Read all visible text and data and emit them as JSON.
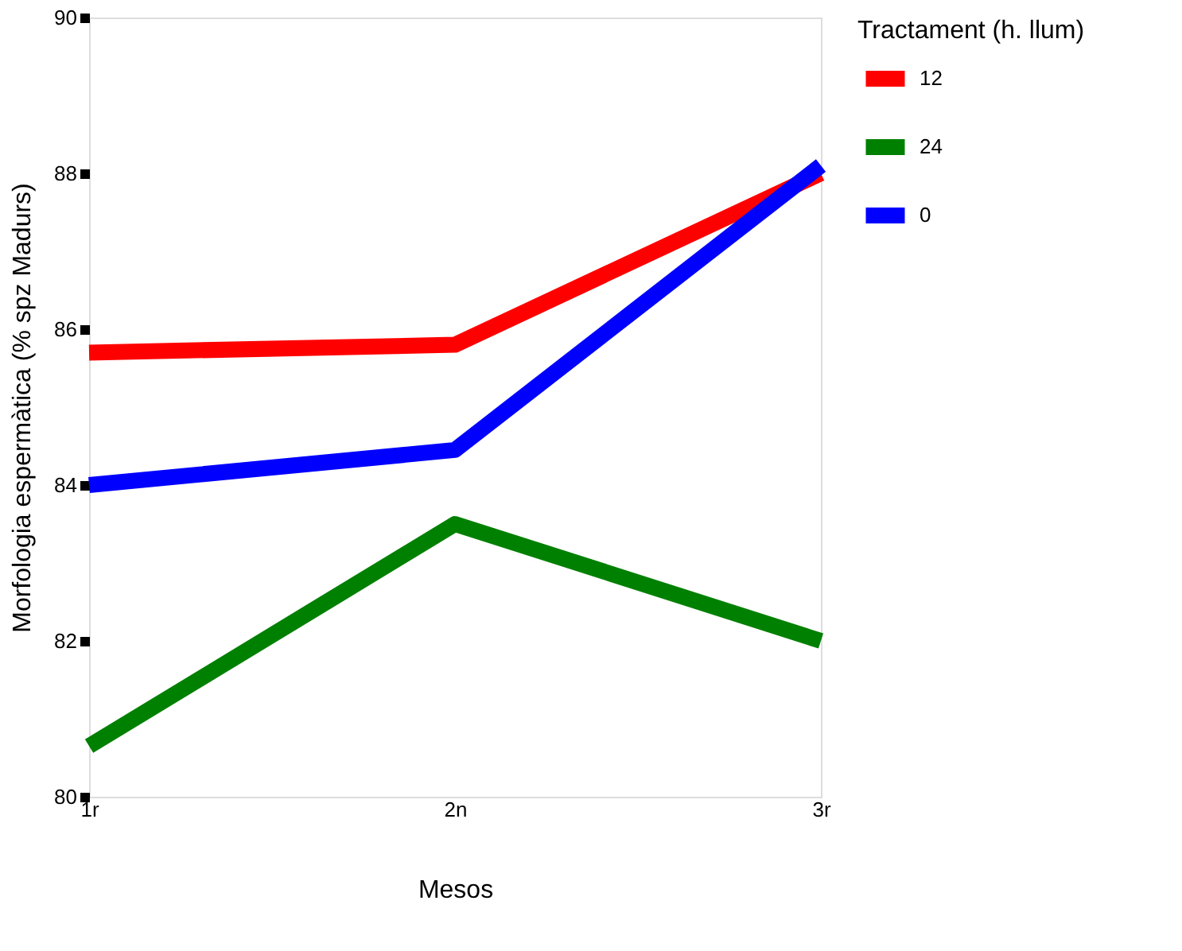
{
  "chart_data": {
    "type": "line",
    "xlabel": "Mesos",
    "ylabel": "Morfologia espermàtica (% spz Madurs)",
    "legend_title": "Tractament (h. llum)",
    "categories": [
      "1r",
      "2n",
      "3r"
    ],
    "series": [
      {
        "name": "12",
        "color": "#ff0000",
        "values": [
          85.7,
          85.8,
          88.0
        ]
      },
      {
        "name": "24",
        "color": "#008000",
        "values": [
          80.65,
          83.5,
          82.0
        ]
      },
      {
        "name": "0",
        "color": "#0000ff",
        "values": [
          84.0,
          84.45,
          88.1
        ]
      }
    ],
    "ylim": [
      80,
      90
    ],
    "yticks": [
      80,
      82,
      84,
      86,
      88,
      90
    ],
    "grid": false,
    "legend": "right",
    "marker": "none",
    "line_style": "solid"
  }
}
